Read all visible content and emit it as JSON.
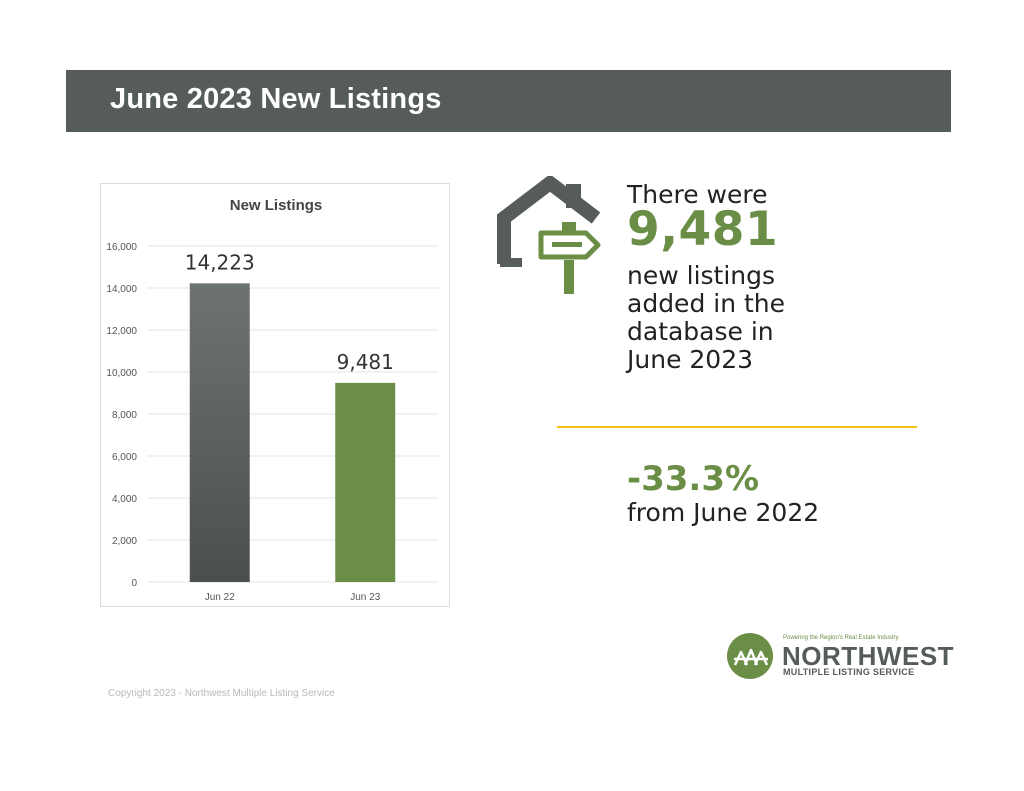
{
  "header": {
    "title": "June 2023 New Listings"
  },
  "chart_data": {
    "type": "bar",
    "title": "New Listings",
    "categories": [
      "Jun 22",
      "Jun 23"
    ],
    "values": [
      14223,
      9481
    ],
    "value_labels": [
      "14,223",
      "9,481"
    ],
    "ylim": [
      0,
      16000
    ],
    "yticks": [
      0,
      2000,
      4000,
      6000,
      8000,
      10000,
      12000,
      14000,
      16000
    ],
    "ytick_labels": [
      "0",
      "2,000",
      "4,000",
      "6,000",
      "8,000",
      "10,000",
      "12,000",
      "14,000",
      "16,000"
    ],
    "grid": true,
    "colors": [
      "#565c59",
      "#6b8e47"
    ]
  },
  "stats": {
    "intro": "There were",
    "number": "9,481",
    "body_lines": [
      "new listings",
      "added in the",
      "database in",
      "June 2023"
    ],
    "percent_change": "-33.3%",
    "comparison": "from June 2022"
  },
  "logo": {
    "tagline": "Powering the Region's Real Estate Industry",
    "name": "NORTHWEST",
    "subname": "MULTIPLE LISTING SERVICE"
  },
  "footer": {
    "copyright": "Copyright 2023 - Northwest Multiple Listing Service"
  },
  "colors": {
    "accent_green": "#6b8e47",
    "slate": "#565c59",
    "divider_yellow": "#f1c40f"
  }
}
